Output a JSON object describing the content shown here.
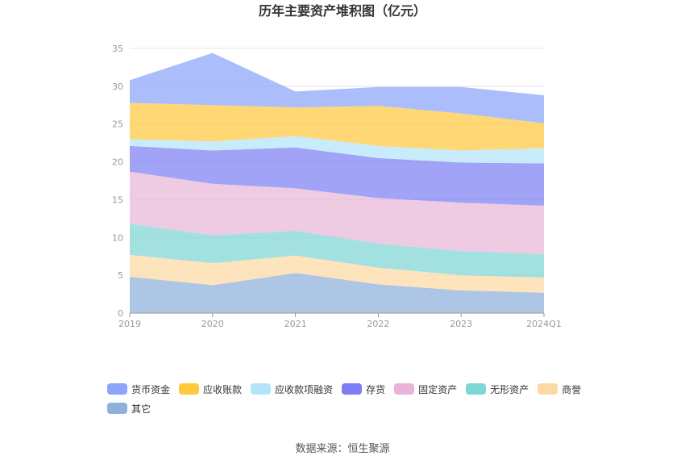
{
  "chart_data": {
    "type": "area",
    "stacked": true,
    "title": "历年主要资产堆积图（亿元）",
    "xlabel": "",
    "ylabel": "",
    "categories": [
      "2019",
      "2020",
      "2021",
      "2022",
      "2023",
      "2024Q1"
    ],
    "ylim": [
      0,
      35
    ],
    "yticks": [
      0,
      5,
      10,
      15,
      20,
      25,
      30,
      35
    ],
    "grid": true,
    "legend_position": "bottom",
    "series": [
      {
        "name": "其它",
        "color": "#8fb0dd",
        "values": [
          4.8,
          3.7,
          5.3,
          3.8,
          3.0,
          2.7
        ]
      },
      {
        "name": "商誉",
        "color": "#fdd9a2",
        "values": [
          2.9,
          2.9,
          2.3,
          2.2,
          2.0,
          2.0
        ]
      },
      {
        "name": "无形资产",
        "color": "#7fd6d6",
        "values": [
          4.1,
          3.7,
          3.3,
          3.2,
          3.2,
          3.1
        ]
      },
      {
        "name": "固定资产",
        "color": "#e8b5d8",
        "values": [
          6.9,
          6.8,
          5.6,
          6.0,
          6.4,
          6.4
        ]
      },
      {
        "name": "存货",
        "color": "#7b7ff2",
        "values": [
          3.4,
          4.4,
          5.4,
          5.3,
          5.3,
          5.6
        ]
      },
      {
        "name": "应收款项融资",
        "color": "#b3e4fb",
        "values": [
          0.9,
          1.2,
          1.5,
          1.6,
          1.6,
          2.0
        ]
      },
      {
        "name": "应收账款",
        "color": "#ffc940",
        "values": [
          4.8,
          4.8,
          3.8,
          5.3,
          4.9,
          3.3
        ]
      },
      {
        "name": "货币资金",
        "color": "#8aa5fa",
        "values": [
          3.0,
          6.9,
          2.1,
          2.5,
          3.5,
          3.7
        ]
      }
    ],
    "legend_order": [
      "货币资金",
      "应收账款",
      "应收款项融资",
      "存货",
      "固定资产",
      "无形资产",
      "商誉",
      "其它"
    ]
  },
  "source_text": "数据来源：恒生聚源"
}
